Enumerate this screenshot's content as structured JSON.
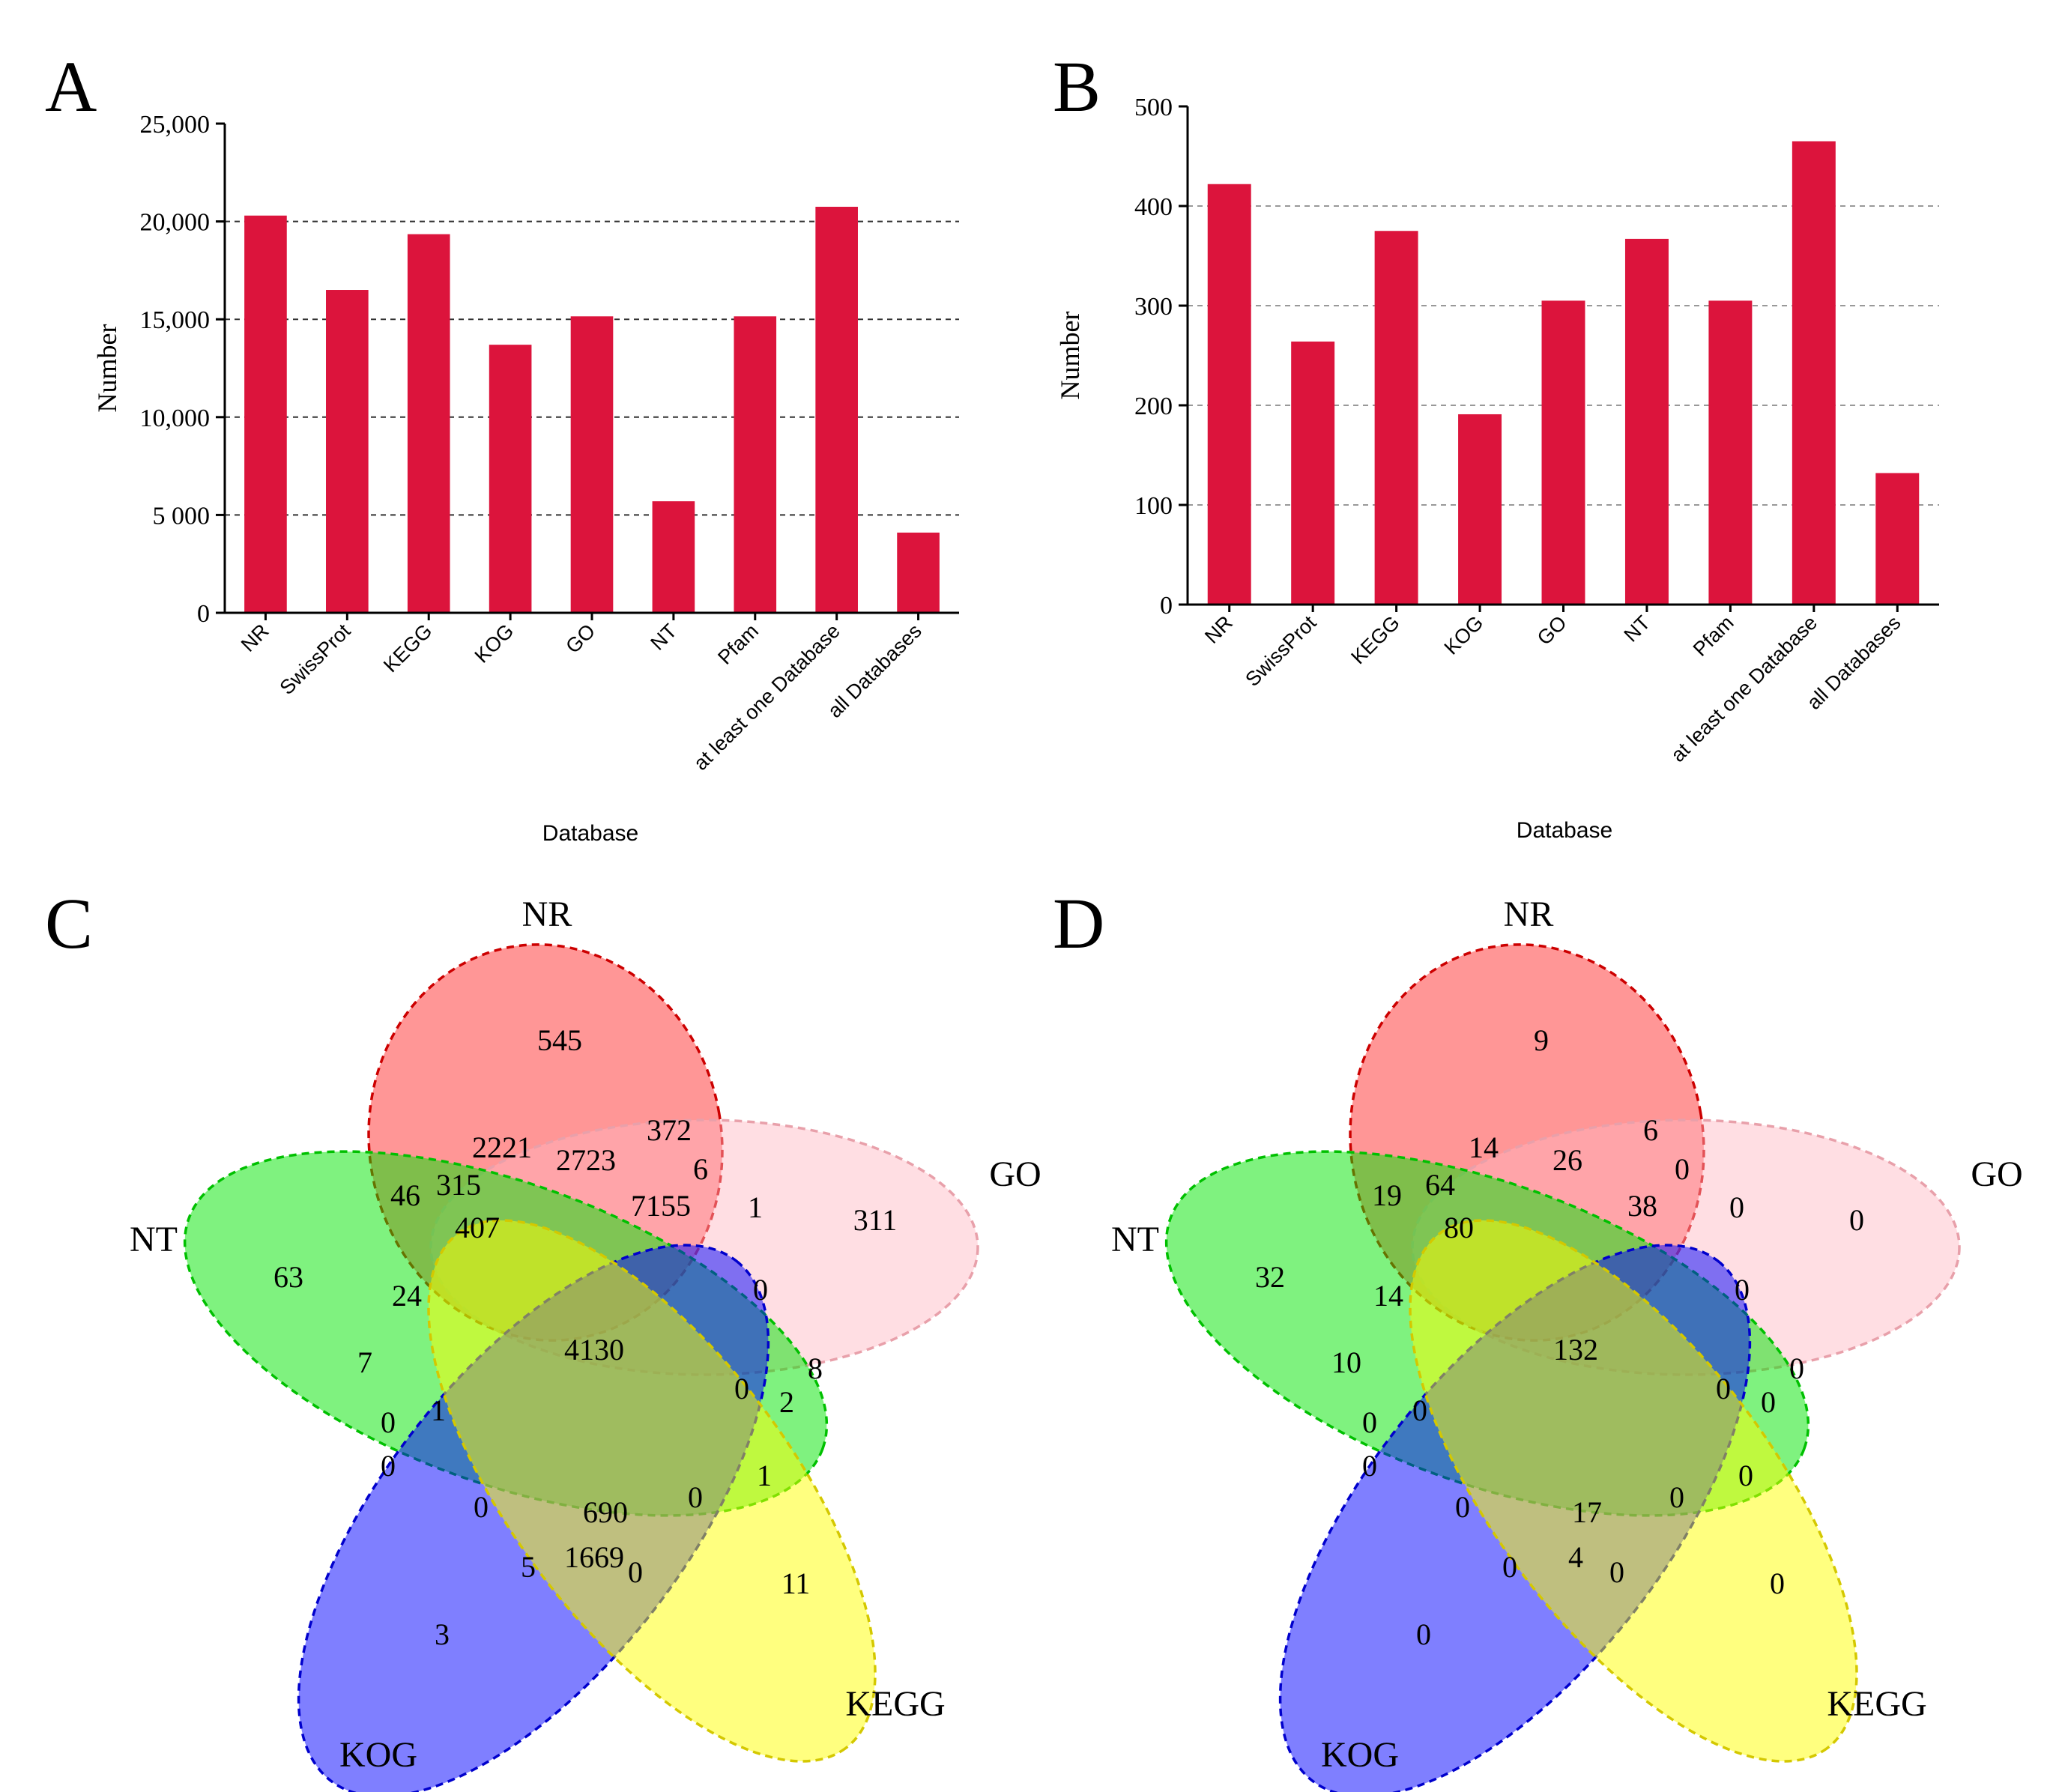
{
  "figure": {
    "panels": {
      "A": {
        "letter": "A"
      },
      "B": {
        "letter": "B"
      },
      "C": {
        "letter": "C"
      },
      "D": {
        "letter": "D"
      }
    }
  },
  "colors": {
    "bar": "#DC143C",
    "NR": "#FF4040",
    "GO": "#FFB6C1",
    "NT": "#00E600",
    "KOG": "#0000FF",
    "KEGG": "#FFFF00"
  },
  "chart_data": [
    {
      "panel": "A",
      "type": "bar",
      "categories": [
        "NR",
        "SwissProt",
        "KEGG",
        "KOG",
        "GO",
        "NT",
        "Pfam",
        "at least one Database",
        "all Databases"
      ],
      "values": [
        20300,
        16500,
        19350,
        13700,
        15150,
        5700,
        15150,
        20750,
        4100
      ],
      "title": "",
      "xlabel": "Database",
      "ylabel": "Number",
      "ylim": [
        0,
        25000
      ],
      "yticks": [
        0,
        5000,
        10000,
        15000,
        20000,
        25000
      ],
      "ytick_labels": [
        "0",
        "5 000",
        "10,000",
        "15,000",
        "20,000",
        "25,000"
      ],
      "grid": true
    },
    {
      "panel": "B",
      "type": "bar",
      "categories": [
        "NR",
        "SwissProt",
        "KEGG",
        "KOG",
        "GO",
        "NT",
        "Pfam",
        "at least one Database",
        "all Databases"
      ],
      "values": [
        422,
        264,
        375,
        191,
        305,
        367,
        305,
        465,
        132
      ],
      "title": "",
      "xlabel": "Database",
      "ylabel": "Number",
      "ylim": [
        0,
        500
      ],
      "yticks": [
        0,
        100,
        200,
        300,
        400,
        500
      ],
      "ytick_labels": [
        "0",
        "100",
        "200",
        "300",
        "400",
        "500"
      ],
      "grid": true
    },
    {
      "panel": "C",
      "type": "venn",
      "sets": [
        "NR",
        "GO",
        "NT",
        "KOG",
        "KEGG"
      ],
      "region_values": [
        {
          "key": "nr_only",
          "value": "545"
        },
        {
          "key": "go_only",
          "value": "311"
        },
        {
          "key": "nt_only",
          "value": "63"
        },
        {
          "key": "kog_only",
          "value": "3"
        },
        {
          "key": "kegg_only",
          "value": "11"
        },
        {
          "key": "center",
          "value": "4130"
        },
        {
          "key": "r1",
          "value": "372"
        },
        {
          "key": "r2",
          "value": "2221"
        },
        {
          "key": "r3",
          "value": "2723"
        },
        {
          "key": "r4",
          "value": "6"
        },
        {
          "key": "r5",
          "value": "46"
        },
        {
          "key": "r6",
          "value": "315"
        },
        {
          "key": "r7",
          "value": "407"
        },
        {
          "key": "r8",
          "value": "7155"
        },
        {
          "key": "r9",
          "value": "1"
        },
        {
          "key": "r10",
          "value": "24"
        },
        {
          "key": "r11",
          "value": "0"
        },
        {
          "key": "r12",
          "value": "7"
        },
        {
          "key": "r13",
          "value": "8"
        },
        {
          "key": "r14",
          "value": "0"
        },
        {
          "key": "r15",
          "value": "2"
        },
        {
          "key": "r16",
          "value": "0"
        },
        {
          "key": "r17",
          "value": "1"
        },
        {
          "key": "r18",
          "value": "0"
        },
        {
          "key": "r19",
          "value": "1"
        },
        {
          "key": "r20",
          "value": "0"
        },
        {
          "key": "r21",
          "value": "690"
        },
        {
          "key": "r22",
          "value": "0"
        },
        {
          "key": "r23",
          "value": "5"
        },
        {
          "key": "r24",
          "value": "1669"
        },
        {
          "key": "r25",
          "value": "0"
        }
      ]
    },
    {
      "panel": "D",
      "type": "venn",
      "sets": [
        "NR",
        "GO",
        "NT",
        "KOG",
        "KEGG"
      ],
      "region_values": [
        {
          "key": "nr_only",
          "value": "9"
        },
        {
          "key": "go_only",
          "value": "0"
        },
        {
          "key": "nt_only",
          "value": "32"
        },
        {
          "key": "kog_only",
          "value": "0"
        },
        {
          "key": "kegg_only",
          "value": "0"
        },
        {
          "key": "center",
          "value": "132"
        },
        {
          "key": "r1",
          "value": "6"
        },
        {
          "key": "r2",
          "value": "14"
        },
        {
          "key": "r3",
          "value": "26"
        },
        {
          "key": "r4",
          "value": "0"
        },
        {
          "key": "r5",
          "value": "19"
        },
        {
          "key": "r6",
          "value": "64"
        },
        {
          "key": "r7",
          "value": "80"
        },
        {
          "key": "r8",
          "value": "38"
        },
        {
          "key": "r9",
          "value": "0"
        },
        {
          "key": "r10",
          "value": "14"
        },
        {
          "key": "r11",
          "value": "0"
        },
        {
          "key": "r12",
          "value": "10"
        },
        {
          "key": "r13",
          "value": "0"
        },
        {
          "key": "r14",
          "value": "0"
        },
        {
          "key": "r15",
          "value": "0"
        },
        {
          "key": "r16",
          "value": "0"
        },
        {
          "key": "r17",
          "value": "0"
        },
        {
          "key": "r18",
          "value": "0"
        },
        {
          "key": "r19",
          "value": "0"
        },
        {
          "key": "r20",
          "value": "0"
        },
        {
          "key": "r21",
          "value": "17"
        },
        {
          "key": "r22",
          "value": "0"
        },
        {
          "key": "r23",
          "value": "0"
        },
        {
          "key": "r24",
          "value": "4"
        },
        {
          "key": "r25",
          "value": "0"
        }
      ]
    }
  ]
}
